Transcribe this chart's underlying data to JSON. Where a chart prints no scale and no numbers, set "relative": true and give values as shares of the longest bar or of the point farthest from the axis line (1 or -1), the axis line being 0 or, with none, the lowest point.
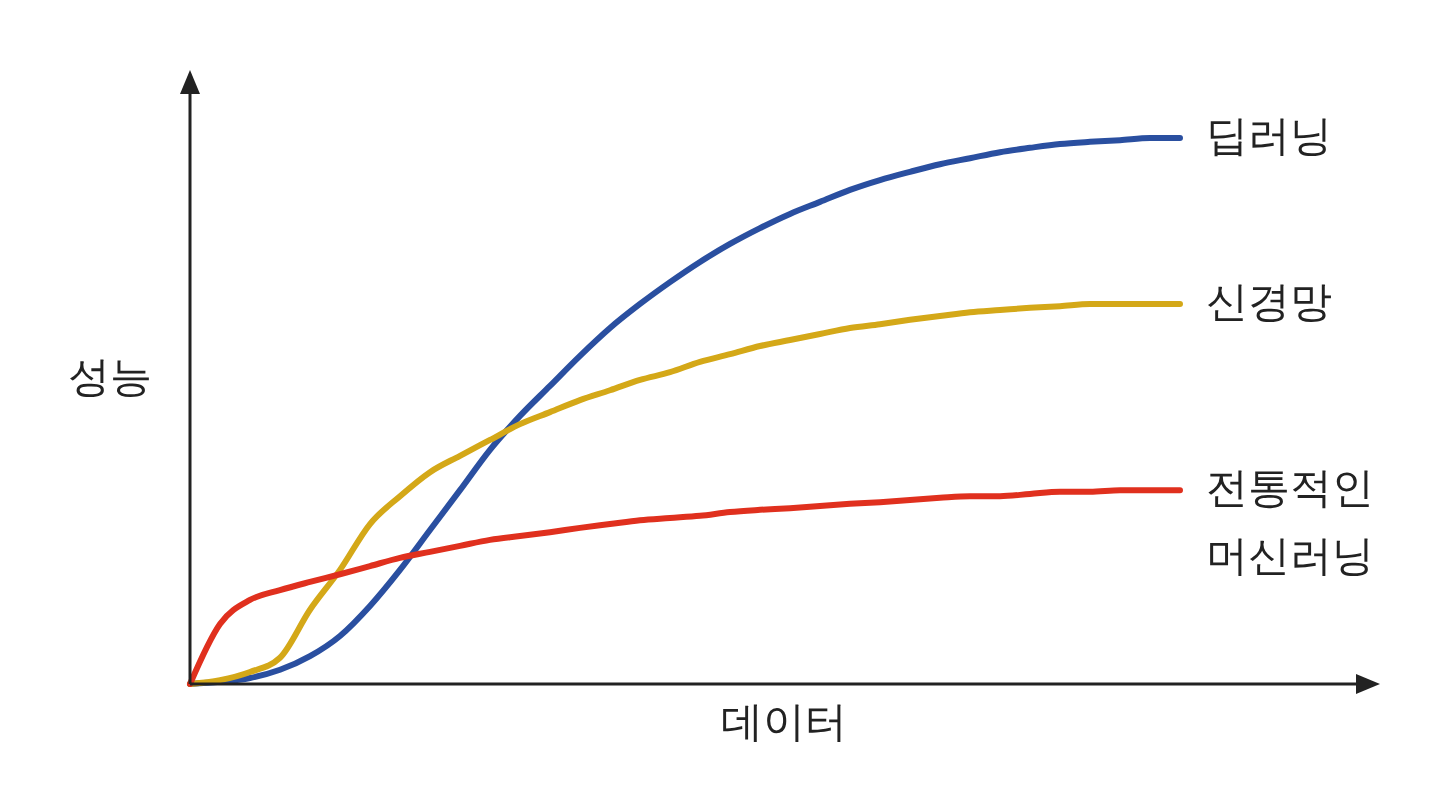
{
  "chart_data": {
    "type": "line",
    "relative": true,
    "xlabel": "데이터",
    "ylabel": "성능",
    "marker": "none",
    "line_style": "solid",
    "categories": [
      null,
      null,
      null,
      null,
      null,
      null,
      null,
      null,
      null,
      null,
      null,
      null,
      null,
      null,
      null,
      null,
      null,
      null,
      null,
      null,
      null,
      null,
      null,
      null,
      null,
      null,
      null,
      null,
      null,
      null,
      null,
      null,
      null,
      null
    ],
    "series": [
      {
        "name": "딥러닝",
        "color": "#2a4fa0",
        "values": [
          0,
          0.004,
          0.011,
          0.026,
          0.051,
          0.088,
          0.143,
          0.209,
          0.282,
          0.355,
          0.429,
          0.491,
          0.546,
          0.601,
          0.652,
          0.696,
          0.736,
          0.773,
          0.806,
          0.835,
          0.861,
          0.883,
          0.905,
          0.923,
          0.938,
          0.952,
          0.963,
          0.974,
          0.982,
          0.989,
          0.993,
          0.996,
          1,
          1
        ]
      },
      {
        "name": "신경망",
        "color": "#d4a818",
        "values": [
          0,
          0.007,
          0.022,
          0.048,
          0.136,
          0.209,
          0.293,
          0.344,
          0.388,
          0.418,
          0.447,
          0.476,
          0.498,
          0.52,
          0.538,
          0.557,
          0.571,
          0.59,
          0.604,
          0.619,
          0.63,
          0.641,
          0.652,
          0.659,
          0.667,
          0.674,
          0.681,
          0.685,
          0.689,
          0.692,
          0.696,
          0.696,
          0.696,
          0.696
        ]
      },
      {
        "name": "전통적인 머신러닝",
        "color": "#e0301e",
        "values": [
          0,
          0.11,
          0.154,
          0.172,
          0.187,
          0.201,
          0.216,
          0.231,
          0.242,
          0.253,
          0.264,
          0.271,
          0.278,
          0.286,
          0.293,
          0.3,
          0.304,
          0.308,
          0.315,
          0.319,
          0.322,
          0.326,
          0.33,
          0.333,
          0.337,
          0.341,
          0.344,
          0.344,
          0.348,
          0.352,
          0.352,
          0.355,
          0.355,
          0.355
        ]
      }
    ]
  }
}
